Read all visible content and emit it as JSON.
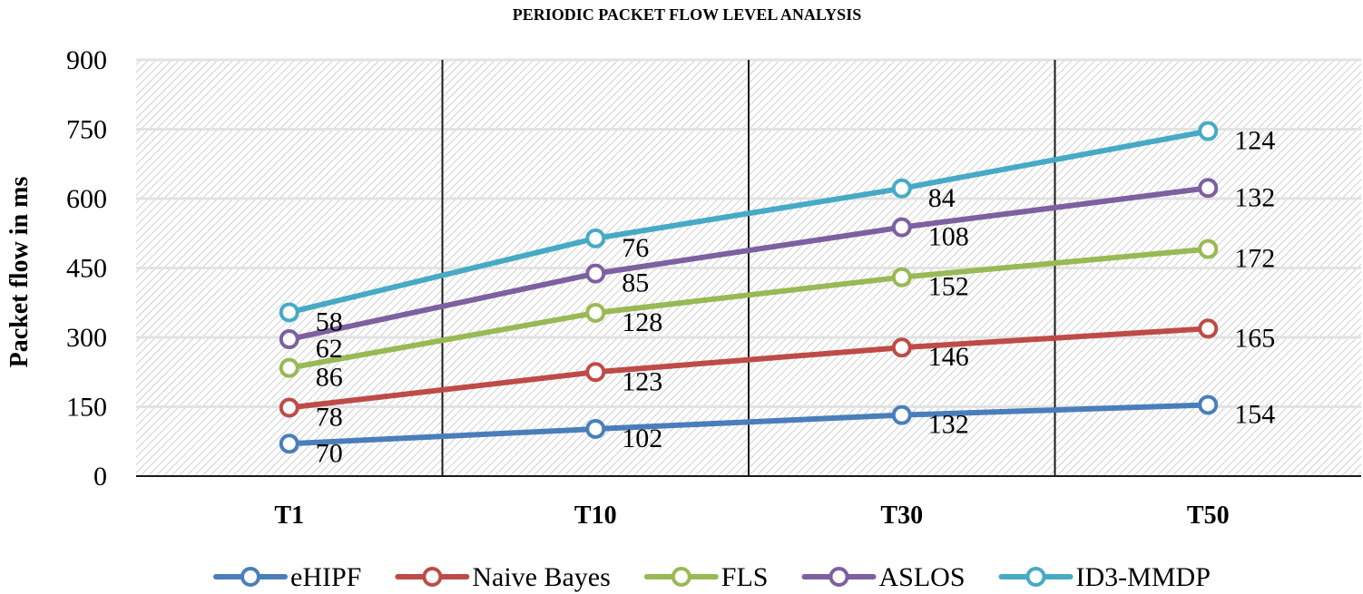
{
  "chart_data": {
    "type": "line",
    "title": "PERIODIC PACKET FLOW LEVEL ANALYSIS",
    "xlabel": "",
    "ylabel": "Packet flow in ms",
    "categories": [
      "T1",
      "T10",
      "T30",
      "T50"
    ],
    "ylim": [
      0,
      900
    ],
    "yticks": [
      "0",
      "150",
      "300",
      "450",
      "600",
      "750",
      "900"
    ],
    "grid": true,
    "legend_position": "bottom",
    "series": [
      {
        "name": "eHIPF",
        "color": "#4A7EBB",
        "values": [
          70,
          102,
          132,
          154
        ],
        "labels": [
          "70",
          "102",
          "132",
          "154"
        ]
      },
      {
        "name": "Naive Bayes",
        "color": "#BE4B48",
        "values": [
          148,
          225,
          278,
          319
        ],
        "labels": [
          "78",
          "123",
          "146",
          "165"
        ]
      },
      {
        "name": "FLS",
        "color": "#98B954",
        "values": [
          234,
          353,
          430,
          491
        ],
        "labels": [
          "86",
          "128",
          "152",
          "172"
        ]
      },
      {
        "name": "ASLOS",
        "color": "#7D60A0",
        "values": [
          296,
          438,
          538,
          623
        ],
        "labels": [
          "62",
          "85",
          "108",
          "132"
        ]
      },
      {
        "name": "ID3-MMDP",
        "color": "#46AAC5",
        "values": [
          354,
          514,
          622,
          746
        ],
        "labels": [
          "58",
          "76",
          "84",
          "124"
        ]
      }
    ]
  }
}
